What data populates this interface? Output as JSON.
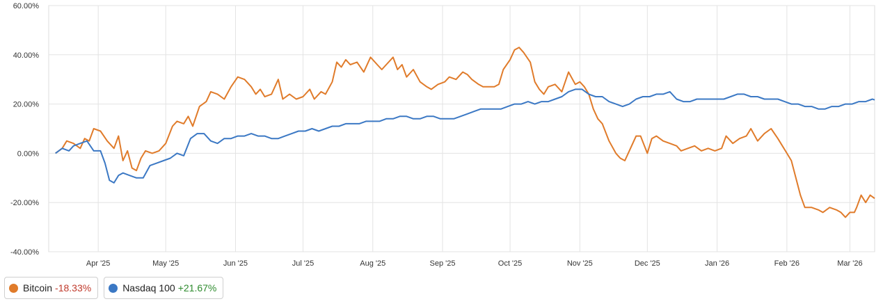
{
  "chart_data": {
    "type": "line",
    "y_unit": "%",
    "ylim": [
      -40,
      60
    ],
    "yticks": [
      "60.00%",
      "40.00%",
      "20.00%",
      "0.00%",
      "-20.00%",
      "-40.00%"
    ],
    "ytick_values": [
      60,
      40,
      20,
      0,
      -20,
      -40
    ],
    "xlim": [
      "2025-03-10",
      "2026-03-12"
    ],
    "xticks": [
      {
        "label": "Apr '25",
        "date": "2025-04-01"
      },
      {
        "label": "May '25",
        "date": "2025-05-01"
      },
      {
        "label": "Jun '25",
        "date": "2025-06-01"
      },
      {
        "label": "Jul '25",
        "date": "2025-07-01"
      },
      {
        "label": "Aug '25",
        "date": "2025-08-01"
      },
      {
        "label": "Sep '25",
        "date": "2025-09-01"
      },
      {
        "label": "Oct '25",
        "date": "2025-10-01"
      },
      {
        "label": "Nov '25",
        "date": "2025-11-01"
      },
      {
        "label": "Dec '25",
        "date": "2025-12-01"
      },
      {
        "label": "Jan '26",
        "date": "2026-01-01"
      },
      {
        "label": "Feb '26",
        "date": "2026-02-01"
      },
      {
        "label": "Mar '26",
        "date": "2026-03-01"
      }
    ],
    "grid": true,
    "legend_position": "bottom-left",
    "series": [
      {
        "name": "Bitcoin",
        "change": "-18.33%",
        "color": "#e07b2a",
        "change_color": "#c0392b",
        "points": [
          [
            "2025-03-13",
            0
          ],
          [
            "2025-03-16",
            2
          ],
          [
            "2025-03-18",
            5
          ],
          [
            "2025-03-21",
            4
          ],
          [
            "2025-03-24",
            2
          ],
          [
            "2025-03-26",
            6
          ],
          [
            "2025-03-28",
            5
          ],
          [
            "2025-03-30",
            10
          ],
          [
            "2025-04-02",
            9
          ],
          [
            "2025-04-05",
            5
          ],
          [
            "2025-04-08",
            2
          ],
          [
            "2025-04-10",
            7
          ],
          [
            "2025-04-12",
            -3
          ],
          [
            "2025-04-14",
            1
          ],
          [
            "2025-04-16",
            -6
          ],
          [
            "2025-04-18",
            -7
          ],
          [
            "2025-04-20",
            -2
          ],
          [
            "2025-04-22",
            1
          ],
          [
            "2025-04-25",
            0
          ],
          [
            "2025-04-28",
            1
          ],
          [
            "2025-05-01",
            4
          ],
          [
            "2025-05-04",
            11
          ],
          [
            "2025-05-06",
            13
          ],
          [
            "2025-05-09",
            12
          ],
          [
            "2025-05-11",
            15
          ],
          [
            "2025-05-13",
            11
          ],
          [
            "2025-05-16",
            19
          ],
          [
            "2025-05-19",
            21
          ],
          [
            "2025-05-21",
            25
          ],
          [
            "2025-05-24",
            24
          ],
          [
            "2025-05-27",
            22
          ],
          [
            "2025-05-30",
            27
          ],
          [
            "2025-06-02",
            31
          ],
          [
            "2025-06-05",
            30
          ],
          [
            "2025-06-08",
            27
          ],
          [
            "2025-06-10",
            24
          ],
          [
            "2025-06-12",
            26
          ],
          [
            "2025-06-14",
            23
          ],
          [
            "2025-06-17",
            24
          ],
          [
            "2025-06-20",
            30
          ],
          [
            "2025-06-22",
            22
          ],
          [
            "2025-06-25",
            24
          ],
          [
            "2025-06-28",
            22
          ],
          [
            "2025-07-01",
            23
          ],
          [
            "2025-07-04",
            26
          ],
          [
            "2025-07-06",
            22
          ],
          [
            "2025-07-09",
            25
          ],
          [
            "2025-07-11",
            24
          ],
          [
            "2025-07-14",
            29
          ],
          [
            "2025-07-16",
            37
          ],
          [
            "2025-07-18",
            35
          ],
          [
            "2025-07-20",
            38
          ],
          [
            "2025-07-22",
            36
          ],
          [
            "2025-07-25",
            37
          ],
          [
            "2025-07-28",
            33
          ],
          [
            "2025-07-31",
            39
          ],
          [
            "2025-08-03",
            36
          ],
          [
            "2025-08-05",
            34
          ],
          [
            "2025-08-07",
            36
          ],
          [
            "2025-08-10",
            39
          ],
          [
            "2025-08-12",
            34
          ],
          [
            "2025-08-14",
            36
          ],
          [
            "2025-08-16",
            31
          ],
          [
            "2025-08-19",
            34
          ],
          [
            "2025-08-22",
            29
          ],
          [
            "2025-08-25",
            27
          ],
          [
            "2025-08-27",
            26
          ],
          [
            "2025-08-30",
            28
          ],
          [
            "2025-09-02",
            29
          ],
          [
            "2025-09-04",
            31
          ],
          [
            "2025-09-07",
            30
          ],
          [
            "2025-09-10",
            33
          ],
          [
            "2025-09-12",
            32
          ],
          [
            "2025-09-14",
            30
          ],
          [
            "2025-09-17",
            28
          ],
          [
            "2025-09-19",
            27
          ],
          [
            "2025-09-21",
            27
          ],
          [
            "2025-09-24",
            27
          ],
          [
            "2025-09-26",
            28
          ],
          [
            "2025-09-28",
            34
          ],
          [
            "2025-10-01",
            38
          ],
          [
            "2025-10-03",
            42
          ],
          [
            "2025-10-05",
            43
          ],
          [
            "2025-10-07",
            41
          ],
          [
            "2025-10-10",
            37
          ],
          [
            "2025-10-12",
            29
          ],
          [
            "2025-10-14",
            26
          ],
          [
            "2025-10-16",
            24
          ],
          [
            "2025-10-18",
            27
          ],
          [
            "2025-10-21",
            28
          ],
          [
            "2025-10-24",
            25
          ],
          [
            "2025-10-27",
            33
          ],
          [
            "2025-10-30",
            28
          ],
          [
            "2025-11-01",
            29
          ],
          [
            "2025-11-03",
            27
          ],
          [
            "2025-11-05",
            24
          ],
          [
            "2025-11-07",
            18
          ],
          [
            "2025-11-09",
            14
          ],
          [
            "2025-11-11",
            12
          ],
          [
            "2025-11-14",
            5
          ],
          [
            "2025-11-17",
            0
          ],
          [
            "2025-11-19",
            -2
          ],
          [
            "2025-11-21",
            -3
          ],
          [
            "2025-11-24",
            3
          ],
          [
            "2025-11-26",
            7
          ],
          [
            "2025-11-28",
            7
          ],
          [
            "2025-12-01",
            0
          ],
          [
            "2025-12-03",
            6
          ],
          [
            "2025-12-05",
            7
          ],
          [
            "2025-12-08",
            5
          ],
          [
            "2025-12-11",
            4
          ],
          [
            "2025-12-14",
            3
          ],
          [
            "2025-12-16",
            1
          ],
          [
            "2025-12-19",
            2
          ],
          [
            "2025-12-22",
            3
          ],
          [
            "2025-12-25",
            1
          ],
          [
            "2025-12-28",
            2
          ],
          [
            "2025-12-31",
            1
          ],
          [
            "2026-01-03",
            2
          ],
          [
            "2026-01-05",
            7
          ],
          [
            "2026-01-08",
            4
          ],
          [
            "2026-01-11",
            6
          ],
          [
            "2026-01-14",
            7
          ],
          [
            "2026-01-16",
            10
          ],
          [
            "2026-01-19",
            5
          ],
          [
            "2026-01-22",
            8
          ],
          [
            "2026-01-25",
            10
          ],
          [
            "2026-01-28",
            6
          ],
          [
            "2026-01-30",
            3
          ],
          [
            "2026-02-01",
            0
          ],
          [
            "2026-02-03",
            -3
          ],
          [
            "2026-02-05",
            -10
          ],
          [
            "2026-02-07",
            -17
          ],
          [
            "2026-02-09",
            -22
          ],
          [
            "2026-02-12",
            -22
          ],
          [
            "2026-02-15",
            -23
          ],
          [
            "2026-02-17",
            -24
          ],
          [
            "2026-02-20",
            -22
          ],
          [
            "2026-02-23",
            -23
          ],
          [
            "2026-02-25",
            -24
          ],
          [
            "2026-02-27",
            -26
          ],
          [
            "2026-03-01",
            -24
          ],
          [
            "2026-03-03",
            -24
          ],
          [
            "2026-03-04",
            -22
          ],
          [
            "2026-03-06",
            -17
          ],
          [
            "2026-03-08",
            -20
          ],
          [
            "2026-03-10",
            -17
          ],
          [
            "2026-03-12",
            -18.33
          ]
        ]
      },
      {
        "name": "Nasdaq 100",
        "change": "+21.67%",
        "color": "#3b78c4",
        "change_color": "#2e8b2e",
        "points": [
          [
            "2025-03-13",
            0
          ],
          [
            "2025-03-16",
            2
          ],
          [
            "2025-03-19",
            1
          ],
          [
            "2025-03-21",
            3
          ],
          [
            "2025-03-24",
            4
          ],
          [
            "2025-03-27",
            5
          ],
          [
            "2025-03-30",
            1
          ],
          [
            "2025-04-02",
            1
          ],
          [
            "2025-04-04",
            -4
          ],
          [
            "2025-04-06",
            -11
          ],
          [
            "2025-04-08",
            -12
          ],
          [
            "2025-04-10",
            -9
          ],
          [
            "2025-04-12",
            -8
          ],
          [
            "2025-04-15",
            -9
          ],
          [
            "2025-04-18",
            -10
          ],
          [
            "2025-04-21",
            -10
          ],
          [
            "2025-04-24",
            -5
          ],
          [
            "2025-04-27",
            -4
          ],
          [
            "2025-04-30",
            -3
          ],
          [
            "2025-05-03",
            -2
          ],
          [
            "2025-05-06",
            0
          ],
          [
            "2025-05-09",
            -1
          ],
          [
            "2025-05-12",
            6
          ],
          [
            "2025-05-15",
            8
          ],
          [
            "2025-05-18",
            8
          ],
          [
            "2025-05-21",
            5
          ],
          [
            "2025-05-24",
            4
          ],
          [
            "2025-05-27",
            6
          ],
          [
            "2025-05-30",
            6
          ],
          [
            "2025-06-02",
            7
          ],
          [
            "2025-06-05",
            7
          ],
          [
            "2025-06-08",
            8
          ],
          [
            "2025-06-11",
            7
          ],
          [
            "2025-06-14",
            7
          ],
          [
            "2025-06-17",
            6
          ],
          [
            "2025-06-20",
            6
          ],
          [
            "2025-06-23",
            7
          ],
          [
            "2025-06-26",
            8
          ],
          [
            "2025-06-29",
            9
          ],
          [
            "2025-07-02",
            9
          ],
          [
            "2025-07-05",
            10
          ],
          [
            "2025-07-08",
            9
          ],
          [
            "2025-07-11",
            10
          ],
          [
            "2025-07-14",
            11
          ],
          [
            "2025-07-17",
            11
          ],
          [
            "2025-07-20",
            12
          ],
          [
            "2025-07-23",
            12
          ],
          [
            "2025-07-26",
            12
          ],
          [
            "2025-07-29",
            13
          ],
          [
            "2025-08-01",
            13
          ],
          [
            "2025-08-04",
            13
          ],
          [
            "2025-08-07",
            14
          ],
          [
            "2025-08-10",
            14
          ],
          [
            "2025-08-13",
            15
          ],
          [
            "2025-08-16",
            15
          ],
          [
            "2025-08-19",
            14
          ],
          [
            "2025-08-22",
            14
          ],
          [
            "2025-08-25",
            15
          ],
          [
            "2025-08-28",
            15
          ],
          [
            "2025-08-31",
            14
          ],
          [
            "2025-09-03",
            14
          ],
          [
            "2025-09-06",
            14
          ],
          [
            "2025-09-09",
            15
          ],
          [
            "2025-09-12",
            16
          ],
          [
            "2025-09-15",
            17
          ],
          [
            "2025-09-18",
            18
          ],
          [
            "2025-09-21",
            18
          ],
          [
            "2025-09-24",
            18
          ],
          [
            "2025-09-27",
            18
          ],
          [
            "2025-09-30",
            19
          ],
          [
            "2025-10-03",
            20
          ],
          [
            "2025-10-06",
            20
          ],
          [
            "2025-10-09",
            21
          ],
          [
            "2025-10-12",
            20
          ],
          [
            "2025-10-15",
            21
          ],
          [
            "2025-10-18",
            21
          ],
          [
            "2025-10-21",
            22
          ],
          [
            "2025-10-24",
            23
          ],
          [
            "2025-10-27",
            25
          ],
          [
            "2025-10-30",
            26
          ],
          [
            "2025-11-02",
            26
          ],
          [
            "2025-11-05",
            24
          ],
          [
            "2025-11-08",
            23
          ],
          [
            "2025-11-11",
            23
          ],
          [
            "2025-11-14",
            21
          ],
          [
            "2025-11-17",
            20
          ],
          [
            "2025-11-20",
            19
          ],
          [
            "2025-11-23",
            20
          ],
          [
            "2025-11-26",
            22
          ],
          [
            "2025-11-29",
            23
          ],
          [
            "2025-12-02",
            23
          ],
          [
            "2025-12-05",
            24
          ],
          [
            "2025-12-08",
            24
          ],
          [
            "2025-12-11",
            25
          ],
          [
            "2025-12-14",
            22
          ],
          [
            "2025-12-17",
            21
          ],
          [
            "2025-12-20",
            21
          ],
          [
            "2025-12-23",
            22
          ],
          [
            "2025-12-26",
            22
          ],
          [
            "2025-12-29",
            22
          ],
          [
            "2026-01-01",
            22
          ],
          [
            "2026-01-04",
            22
          ],
          [
            "2026-01-07",
            23
          ],
          [
            "2026-01-10",
            24
          ],
          [
            "2026-01-13",
            24
          ],
          [
            "2026-01-16",
            23
          ],
          [
            "2026-01-19",
            23
          ],
          [
            "2026-01-22",
            22
          ],
          [
            "2026-01-25",
            22
          ],
          [
            "2026-01-28",
            22
          ],
          [
            "2026-01-31",
            21
          ],
          [
            "2026-02-03",
            20
          ],
          [
            "2026-02-06",
            20
          ],
          [
            "2026-02-09",
            19
          ],
          [
            "2026-02-12",
            19
          ],
          [
            "2026-02-15",
            18
          ],
          [
            "2026-02-18",
            18
          ],
          [
            "2026-02-21",
            19
          ],
          [
            "2026-02-24",
            19
          ],
          [
            "2026-02-27",
            20
          ],
          [
            "2026-03-02",
            20
          ],
          [
            "2026-03-05",
            21
          ],
          [
            "2026-03-08",
            21
          ],
          [
            "2026-03-11",
            22
          ],
          [
            "2026-03-12",
            21.67
          ]
        ]
      }
    ]
  }
}
